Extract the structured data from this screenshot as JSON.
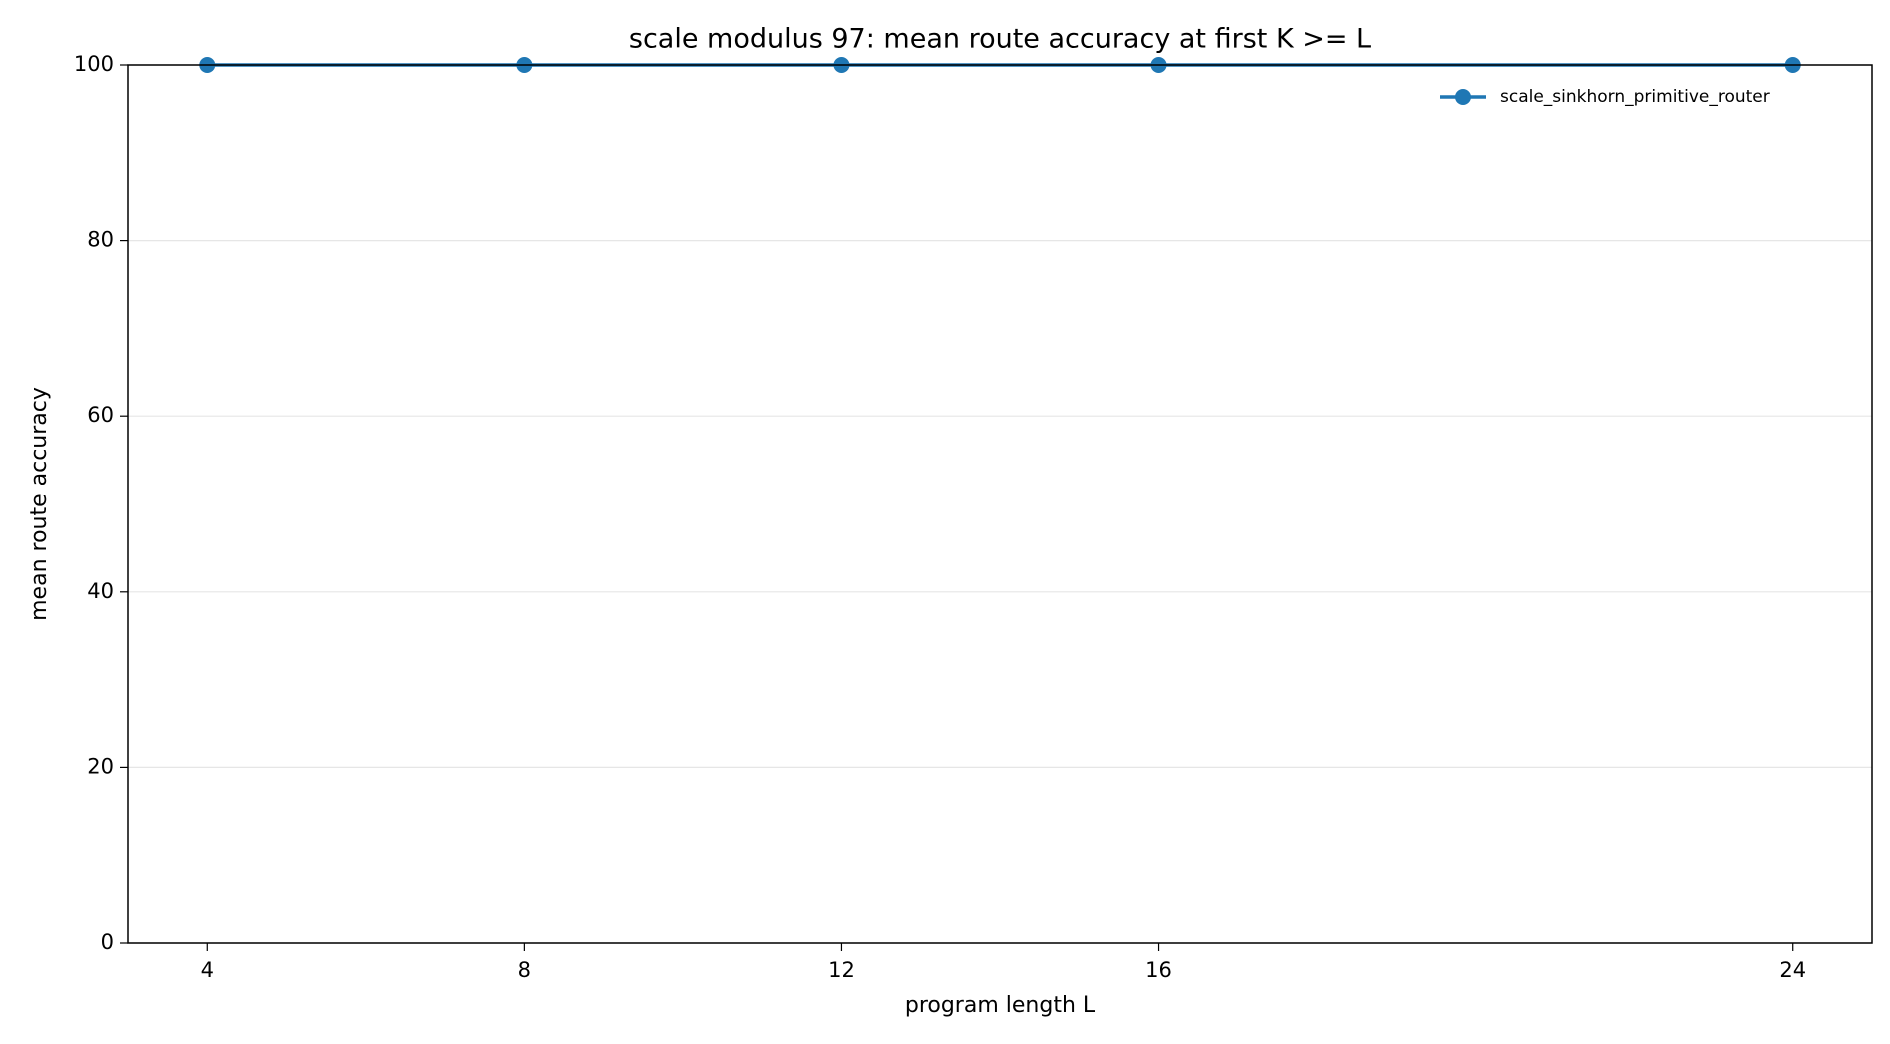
{
  "chart_data": {
    "type": "line",
    "title": "scale modulus 97: mean route accuracy at first K >= L",
    "x_label": "program length L",
    "y_label": "mean route accuracy",
    "x": [
      4,
      8,
      12,
      16,
      24
    ],
    "series": [
      {
        "name": "scale_sinkhorn_primitive_router",
        "color": "#1f77b4",
        "values": [
          100,
          100,
          100,
          100,
          100
        ]
      }
    ],
    "xlim": [
      3,
      25
    ],
    "xticks": [
      4,
      8,
      12,
      16,
      24
    ],
    "ylim": [
      0,
      100
    ],
    "yticks": [
      0,
      20,
      40,
      60,
      80,
      100
    ],
    "grid": true,
    "legend": "upper right"
  }
}
